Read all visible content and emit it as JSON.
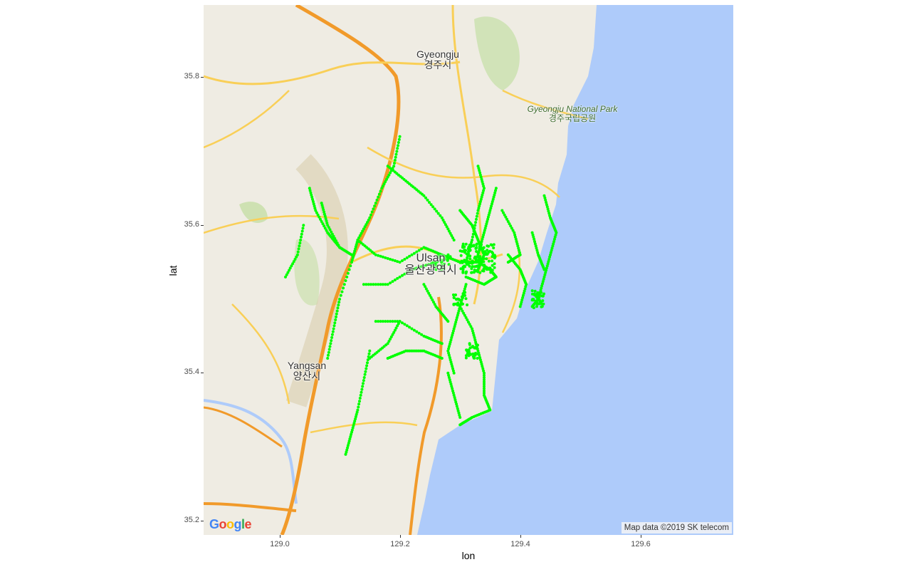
{
  "map": {
    "title": "",
    "x_axis": {
      "label": "lon",
      "ticks": [
        "129.0",
        "129.2",
        "129.4",
        "129.6"
      ],
      "tick_values": [
        129.0,
        129.2,
        129.4,
        129.6
      ],
      "range": [
        128.874,
        129.754
      ]
    },
    "y_axis": {
      "label": "lat",
      "ticks": [
        "35.2",
        "35.4",
        "35.6",
        "35.8"
      ],
      "tick_values": [
        35.2,
        35.4,
        35.6,
        35.8
      ],
      "range": [
        35.181,
        35.898
      ]
    },
    "labels": {
      "gyeongju_en": "Gyeongju",
      "gyeongju_ko": "경주시",
      "park_en": "Gyeongju National Park",
      "park_ko": "경주국립공원",
      "ulsan_en": "Ulsan",
      "ulsan_ko": "울산광역시",
      "yangsan_en": "Yangsan",
      "yangsan_ko": "양산시"
    },
    "attribution": "Map data ©2019 SK telecom",
    "logo_letters": [
      "G",
      "o",
      "o",
      "g",
      "l",
      "e"
    ],
    "colors": {
      "land": "#efece3",
      "water": "#aecbfa",
      "highway": "#f19a2a",
      "major_road": "#f9cf57",
      "park": "#c5dfa5",
      "points": "#00ff00",
      "logo": [
        "#4285f4",
        "#ea4335",
        "#fbbc05",
        "#4285f4",
        "#34a853",
        "#ea4335"
      ]
    }
  },
  "chart_data": {
    "type": "scatter",
    "xlabel": "lon",
    "ylabel": "lat",
    "xlim": [
      128.874,
      129.754
    ],
    "ylim": [
      35.181,
      35.898
    ],
    "point_color": "#00ff00",
    "tracks": [
      {
        "points": [
          [
            129.2,
            35.72
          ],
          [
            129.19,
            35.68
          ],
          [
            129.17,
            35.65
          ],
          [
            129.15,
            35.61
          ],
          [
            129.13,
            35.58
          ],
          [
            129.12,
            35.55
          ],
          [
            129.1,
            35.5
          ],
          [
            129.09,
            35.46
          ],
          [
            129.08,
            35.42
          ]
        ]
      },
      {
        "points": [
          [
            129.07,
            35.63
          ],
          [
            129.08,
            35.6
          ],
          [
            129.1,
            35.57
          ],
          [
            129.12,
            35.56
          ]
        ]
      },
      {
        "points": [
          [
            129.04,
            35.6
          ],
          [
            129.03,
            35.56
          ],
          [
            129.01,
            35.53
          ]
        ]
      },
      {
        "points": [
          [
            129.05,
            35.65
          ],
          [
            129.06,
            35.62
          ],
          [
            129.08,
            35.59
          ],
          [
            129.1,
            35.57
          ]
        ]
      },
      {
        "points": [
          [
            129.13,
            35.58
          ],
          [
            129.16,
            35.56
          ],
          [
            129.2,
            35.55
          ],
          [
            129.24,
            35.57
          ],
          [
            129.27,
            35.56
          ],
          [
            129.3,
            35.55
          ]
        ]
      },
      {
        "points": [
          [
            129.14,
            35.52
          ],
          [
            129.18,
            35.52
          ],
          [
            129.22,
            35.54
          ],
          [
            129.26,
            35.55
          ]
        ]
      },
      {
        "points": [
          [
            129.18,
            35.68
          ],
          [
            129.21,
            35.66
          ],
          [
            129.24,
            35.64
          ],
          [
            129.27,
            35.61
          ],
          [
            129.29,
            35.58
          ]
        ]
      },
      {
        "points": [
          [
            129.3,
            35.62
          ],
          [
            129.32,
            35.6
          ],
          [
            129.33,
            35.58
          ],
          [
            129.34,
            35.56
          ],
          [
            129.33,
            35.54
          ]
        ]
      },
      {
        "points": [
          [
            129.33,
            35.68
          ],
          [
            129.34,
            35.65
          ],
          [
            129.33,
            35.62
          ],
          [
            129.32,
            35.58
          ],
          [
            129.31,
            35.55
          ]
        ]
      },
      {
        "points": [
          [
            129.36,
            35.65
          ],
          [
            129.35,
            35.62
          ],
          [
            129.34,
            35.59
          ],
          [
            129.33,
            35.56
          ]
        ]
      },
      {
        "points": [
          [
            129.31,
            35.55
          ],
          [
            129.33,
            35.55
          ],
          [
            129.35,
            35.54
          ],
          [
            129.36,
            35.53
          ],
          [
            129.34,
            35.52
          ],
          [
            129.31,
            35.53
          ]
        ]
      },
      {
        "points": [
          [
            129.31,
            35.52
          ],
          [
            129.3,
            35.49
          ],
          [
            129.29,
            35.46
          ],
          [
            129.28,
            35.43
          ],
          [
            129.29,
            35.4
          ]
        ]
      },
      {
        "points": [
          [
            129.24,
            35.52
          ],
          [
            129.26,
            35.49
          ],
          [
            129.28,
            35.47
          ]
        ]
      },
      {
        "points": [
          [
            129.3,
            35.49
          ],
          [
            129.32,
            35.46
          ],
          [
            129.33,
            35.43
          ],
          [
            129.34,
            35.4
          ],
          [
            129.34,
            35.37
          ],
          [
            129.35,
            35.35
          ],
          [
            129.32,
            35.34
          ],
          [
            129.3,
            35.33
          ]
        ]
      },
      {
        "points": [
          [
            129.28,
            35.4
          ],
          [
            129.29,
            35.37
          ],
          [
            129.3,
            35.34
          ]
        ]
      },
      {
        "points": [
          [
            129.18,
            35.42
          ],
          [
            129.21,
            35.43
          ],
          [
            129.24,
            35.43
          ],
          [
            129.27,
            35.42
          ]
        ]
      },
      {
        "points": [
          [
            129.15,
            35.43
          ],
          [
            129.14,
            35.39
          ],
          [
            129.13,
            35.35
          ],
          [
            129.12,
            35.32
          ],
          [
            129.11,
            35.29
          ]
        ]
      },
      {
        "points": [
          [
            129.2,
            35.47
          ],
          [
            129.18,
            35.44
          ],
          [
            129.15,
            35.42
          ]
        ]
      },
      {
        "points": [
          [
            129.38,
            35.56
          ],
          [
            129.4,
            35.54
          ],
          [
            129.41,
            35.52
          ],
          [
            129.4,
            35.49
          ]
        ]
      },
      {
        "points": [
          [
            129.44,
            35.64
          ],
          [
            129.45,
            35.61
          ],
          [
            129.46,
            35.59
          ],
          [
            129.45,
            35.56
          ],
          [
            129.44,
            35.53
          ],
          [
            129.43,
            35.5
          ],
          [
            129.42,
            35.49
          ]
        ]
      },
      {
        "points": [
          [
            129.37,
            35.62
          ],
          [
            129.39,
            35.59
          ],
          [
            129.4,
            35.56
          ],
          [
            129.38,
            35.55
          ]
        ]
      },
      {
        "points": [
          [
            129.42,
            35.59
          ],
          [
            129.43,
            35.56
          ],
          [
            129.44,
            35.54
          ]
        ]
      },
      {
        "points": [
          [
            129.16,
            35.47
          ],
          [
            129.2,
            35.47
          ],
          [
            129.24,
            35.45
          ],
          [
            129.27,
            35.44
          ]
        ]
      }
    ],
    "clusters": [
      {
        "center": [
          129.33,
          35.555
        ],
        "spread": [
          0.03,
          0.02
        ],
        "count": 150
      },
      {
        "center": [
          129.27,
          35.55
        ],
        "spread": [
          0.015,
          0.01
        ],
        "count": 40
      },
      {
        "center": [
          129.43,
          35.5
        ],
        "spread": [
          0.01,
          0.012
        ],
        "count": 40
      },
      {
        "center": [
          129.32,
          35.43
        ],
        "spread": [
          0.01,
          0.01
        ],
        "count": 30
      },
      {
        "center": [
          129.3,
          35.5
        ],
        "spread": [
          0.012,
          0.01
        ],
        "count": 25
      }
    ]
  }
}
